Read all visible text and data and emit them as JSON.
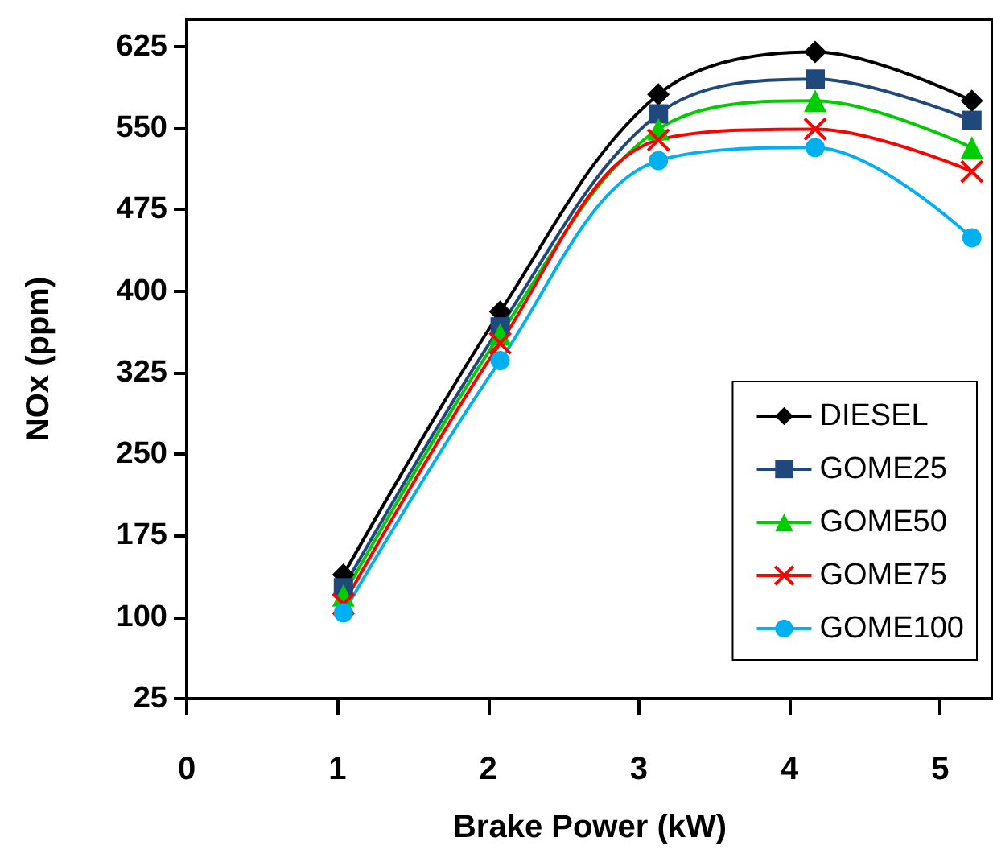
{
  "chart_data": {
    "type": "line",
    "xlabel": "Brake Power (kW)",
    "ylabel": "NOx (ppm)",
    "xlim": [
      0,
      5.35
    ],
    "xticks": [
      0,
      1,
      2,
      3,
      4,
      5
    ],
    "ylim": [
      25,
      650
    ],
    "yticks": [
      25,
      100,
      175,
      250,
      325,
      400,
      475,
      550,
      625
    ],
    "x": [
      1.04,
      2.08,
      3.13,
      4.17,
      5.21
    ],
    "grid": false,
    "legend": "bottom right",
    "line_style": "solid",
    "series": [
      {
        "name": "DIESEL",
        "color": "#000000",
        "marker": "diamond",
        "values": [
          139,
          381,
          581,
          620,
          575
        ]
      },
      {
        "name": "GOME25",
        "color": "#1f497d",
        "marker": "square",
        "values": [
          127,
          367,
          563,
          595,
          557
        ]
      },
      {
        "name": "GOME50",
        "color": "#00cc00",
        "marker": "triangle",
        "values": [
          120,
          360,
          549,
          575,
          532
        ]
      },
      {
        "name": "GOME75",
        "color": "#ff0000",
        "marker": "cross",
        "values": [
          112,
          352,
          539,
          549,
          510
        ]
      },
      {
        "name": "GOME100",
        "color": "#00b0f0",
        "marker": "circle",
        "values": [
          104,
          336,
          520,
          532,
          449
        ]
      }
    ]
  }
}
